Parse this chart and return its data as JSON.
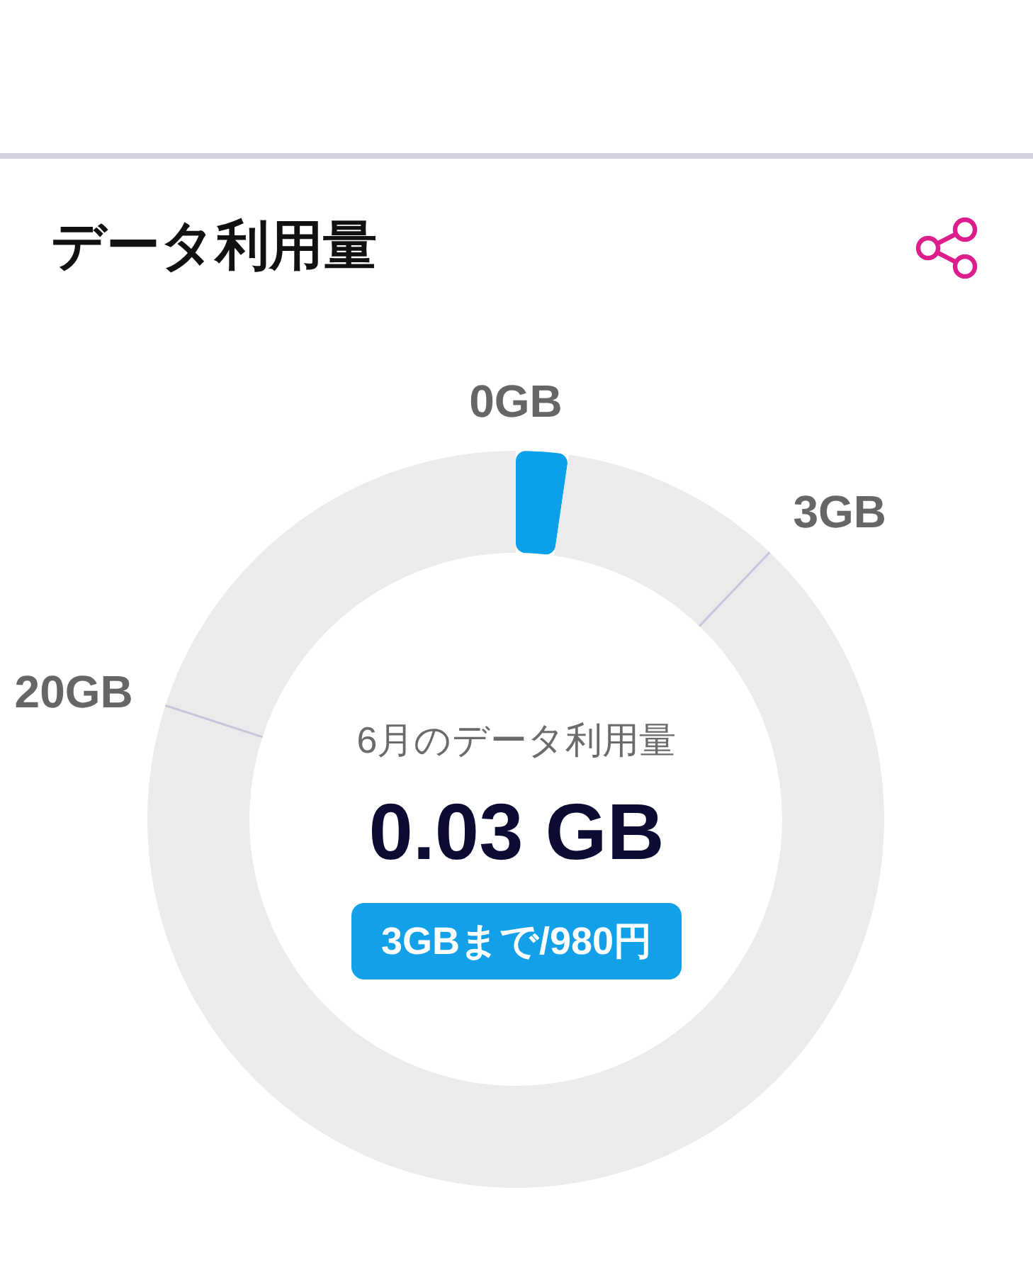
{
  "chart_data": {
    "type": "donut",
    "title": "データ利用量",
    "categories": [
      "0GB",
      null,
      "3GB",
      "20GB"
    ],
    "values": [
      2.3,
      9.8,
      67.9,
      20.0
    ],
    "colors": [
      "#0ba0ea",
      "#ebebeb",
      "#ebebeb",
      "#ebebeb"
    ],
    "annotations": [
      "6月のデータ利用量",
      "0.03 GB",
      "3GBまで/980円"
    ]
  }
}
